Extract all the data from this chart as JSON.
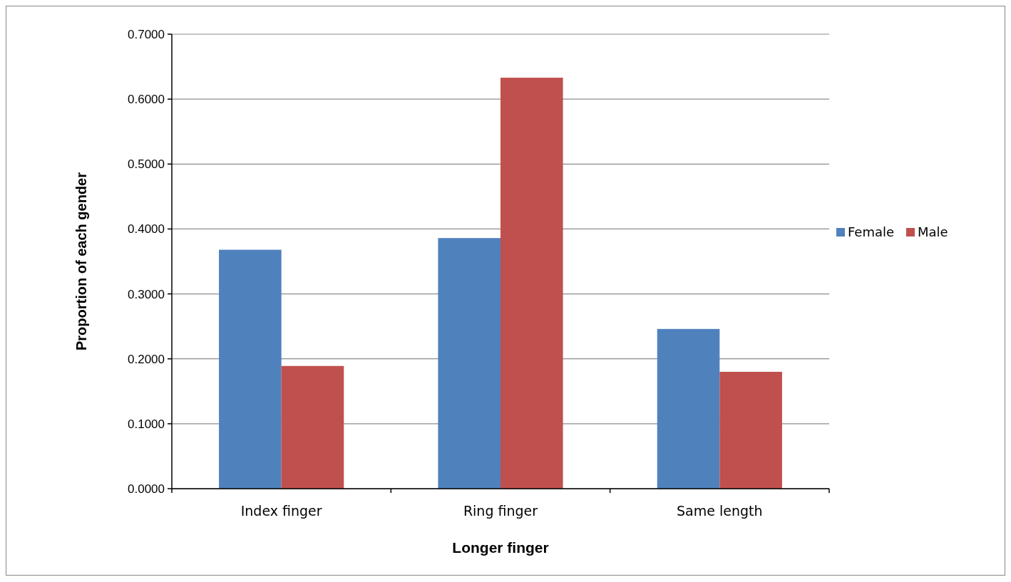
{
  "chart_data": {
    "type": "bar",
    "xlabel": "Longer finger",
    "ylabel": "Proportion of each gender",
    "categories": [
      "Index finger",
      "Ring finger",
      "Same length"
    ],
    "series": [
      {
        "name": "Female",
        "color": "#4f81bd",
        "values": [
          0.368,
          0.386,
          0.246
        ]
      },
      {
        "name": "Male",
        "color": "#c0504d",
        "values": [
          0.189,
          0.633,
          0.18
        ]
      }
    ],
    "ylim": [
      0,
      0.7
    ],
    "yticks": [
      {
        "value": 0,
        "label": "0.0000"
      },
      {
        "value": 0.1,
        "label": "0.1000"
      },
      {
        "value": 0.2,
        "label": "0.2000"
      },
      {
        "value": 0.3,
        "label": "0.3000"
      },
      {
        "value": 0.4,
        "label": "0.4000"
      },
      {
        "value": 0.5,
        "label": "0.5000"
      },
      {
        "value": 0.6,
        "label": "0.6000"
      },
      {
        "value": 0.7,
        "label": "0.7000"
      }
    ],
    "grid": "y",
    "legend": "right"
  }
}
